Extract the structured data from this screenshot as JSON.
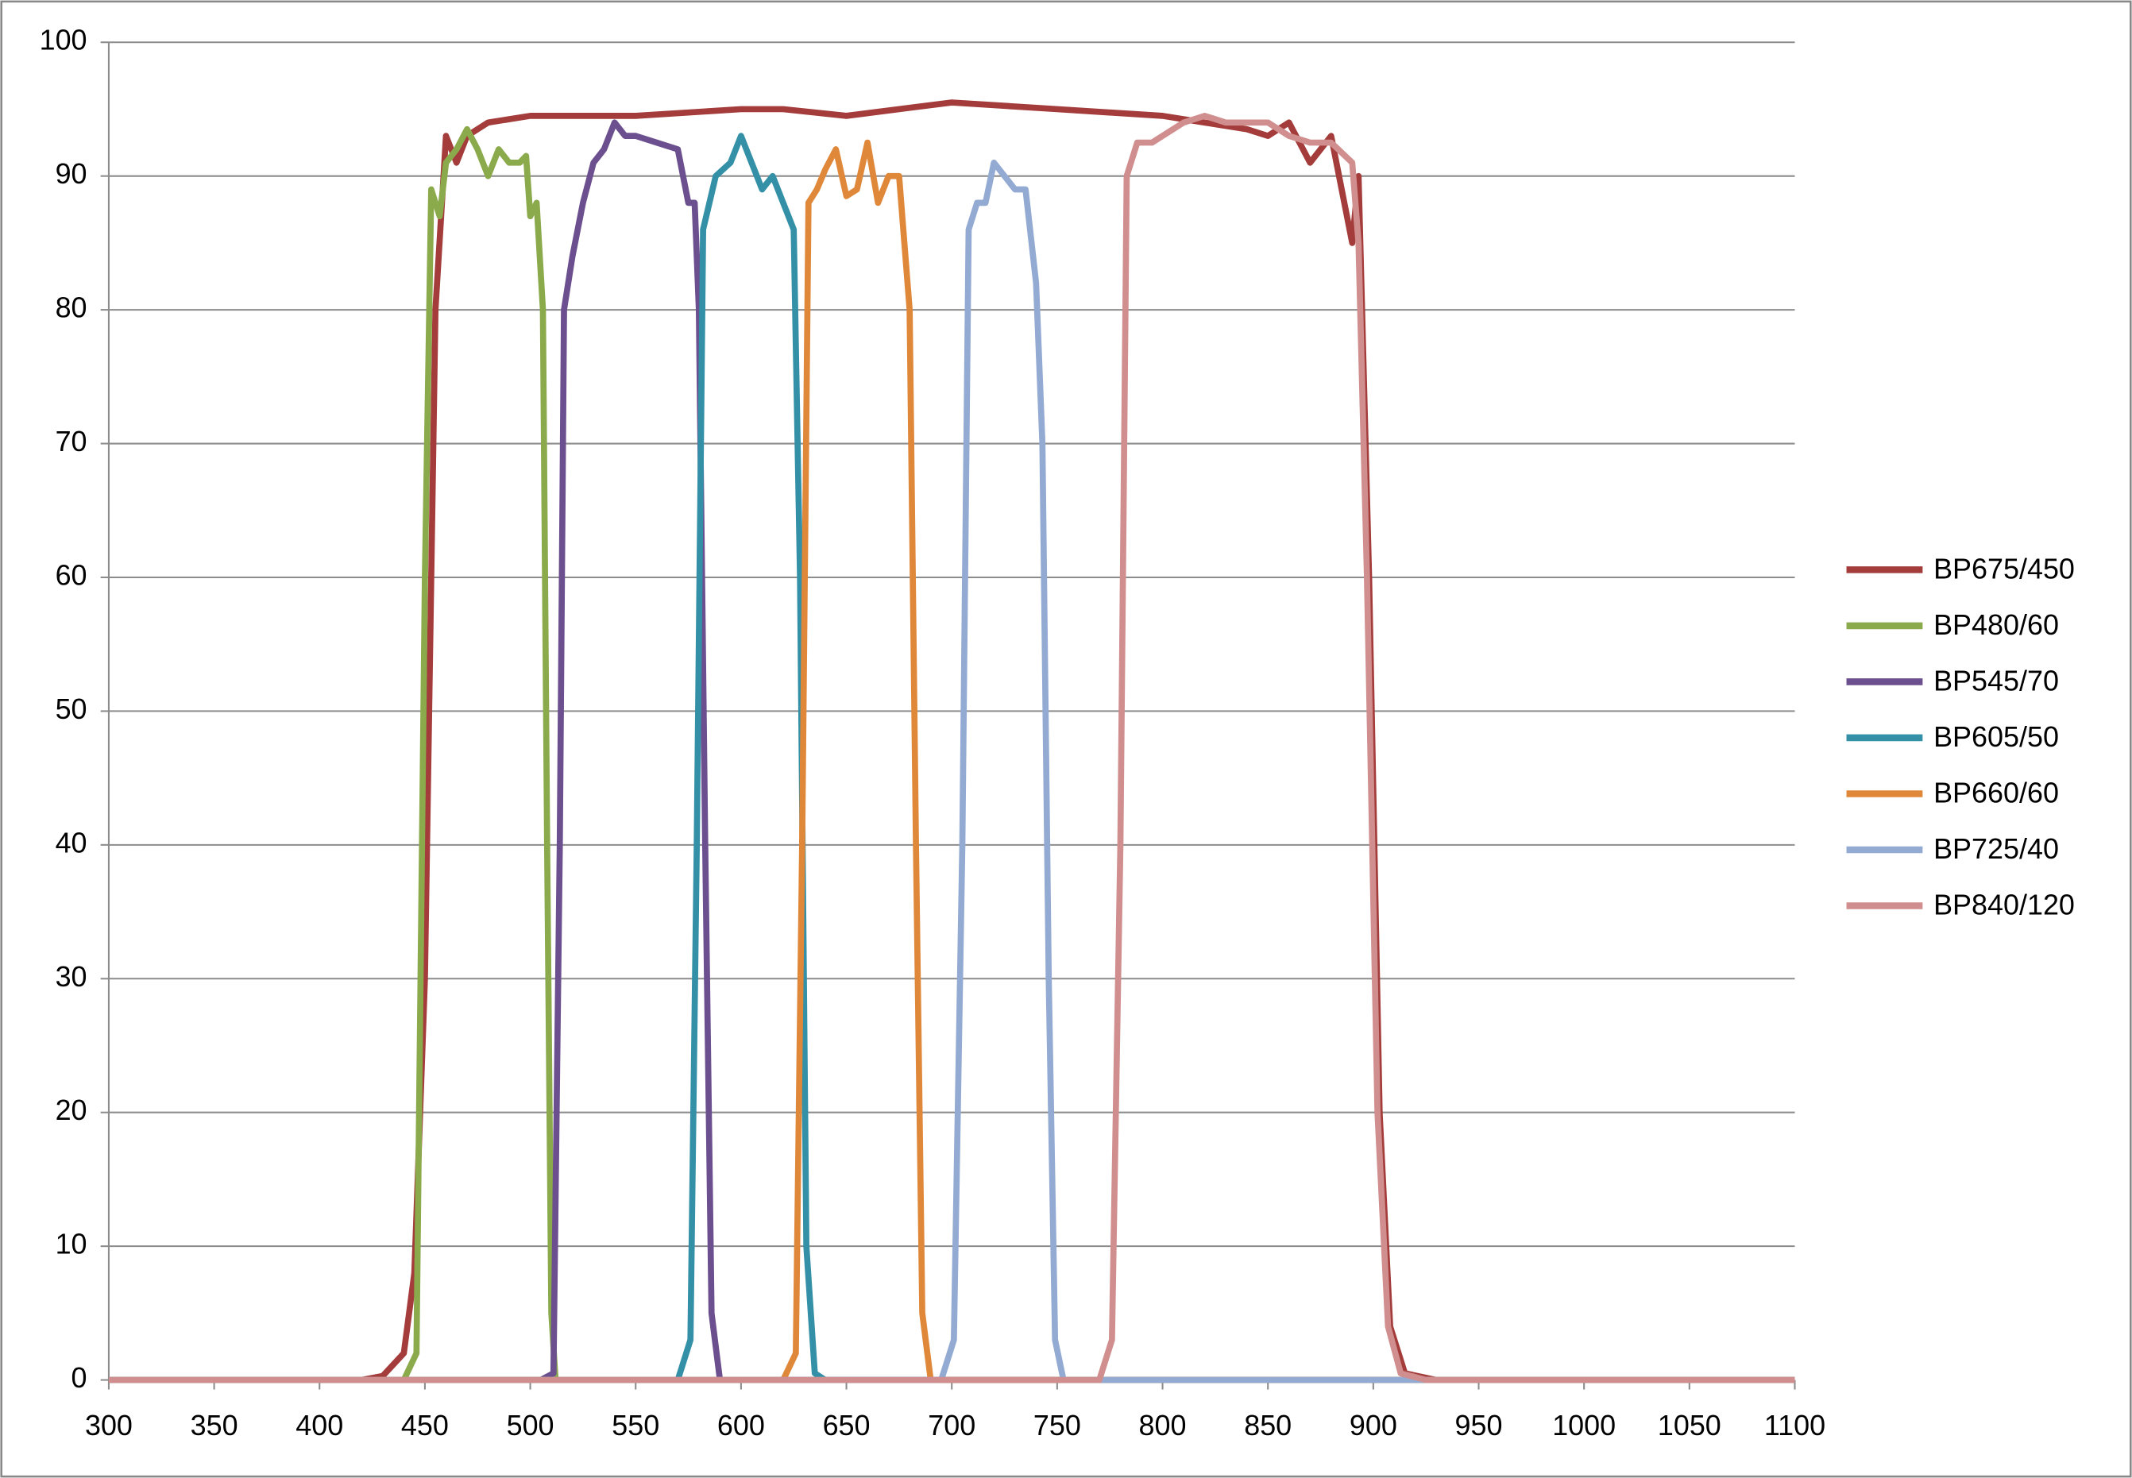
{
  "chart_data": {
    "type": "line",
    "xlim": [
      300,
      1100
    ],
    "xticks": [
      300,
      350,
      400,
      450,
      500,
      550,
      600,
      650,
      700,
      750,
      800,
      850,
      900,
      950,
      1000,
      1050,
      1100
    ],
    "ylim": [
      0,
      100
    ],
    "yticks": [
      0,
      10,
      20,
      30,
      40,
      50,
      60,
      70,
      80,
      90,
      100
    ],
    "grid": true,
    "legend": "right",
    "series": [
      {
        "name": "BP675/450",
        "color": "#a33c3a",
        "x": [
          300,
          420,
          430,
          440,
          445,
          450,
          455,
          460,
          465,
          470,
          480,
          500,
          550,
          600,
          620,
          650,
          700,
          750,
          800,
          820,
          840,
          850,
          860,
          870,
          880,
          885,
          890,
          893,
          898,
          903,
          908,
          915,
          930,
          1100
        ],
        "values": [
          0,
          0,
          0.3,
          2,
          8,
          30,
          80,
          93,
          91,
          93,
          94,
          94.5,
          94.5,
          95,
          95,
          94.5,
          95.5,
          95,
          94.5,
          94,
          93.5,
          93,
          94,
          91,
          93,
          89,
          85,
          90,
          60,
          20,
          4,
          0.5,
          0,
          0
        ]
      },
      {
        "name": "BP480/60",
        "color": "#8aaa4b",
        "x": [
          300,
          440,
          446,
          450,
          453,
          457,
          460,
          465,
          470,
          475,
          480,
          485,
          490,
          495,
          498,
          500,
          503,
          506,
          508,
          510,
          512,
          1100
        ],
        "values": [
          0,
          0,
          2,
          60,
          89,
          87,
          91,
          92,
          93.5,
          92,
          90,
          92,
          91,
          91,
          91.5,
          87,
          88,
          80,
          40,
          5,
          0,
          0
        ]
      },
      {
        "name": "BP545/70",
        "color": "#6b4f8e",
        "x": [
          300,
          505,
          511,
          514,
          516,
          520,
          525,
          530,
          535,
          540,
          545,
          550,
          560,
          570,
          575,
          578,
          580,
          583,
          586,
          590,
          1100
        ],
        "values": [
          0,
          0,
          0.5,
          40,
          80,
          84,
          88,
          91,
          92,
          94,
          93,
          93,
          92.5,
          92,
          88,
          88,
          80,
          40,
          5,
          0,
          0
        ]
      },
      {
        "name": "BP605/50",
        "color": "#3390a6",
        "x": [
          300,
          570,
          576,
          579,
          582,
          585,
          588,
          595,
          600,
          605,
          610,
          615,
          620,
          625,
          628,
          631,
          635,
          640,
          1100
        ],
        "values": [
          0,
          0,
          3,
          40,
          86,
          88,
          90,
          91,
          93,
          91,
          89,
          90,
          88,
          86,
          60,
          10,
          0.5,
          0,
          0
        ]
      },
      {
        "name": "BP660/60",
        "color": "#e0883a",
        "x": [
          300,
          620,
          626,
          629,
          632,
          636,
          640,
          645,
          650,
          655,
          660,
          665,
          670,
          675,
          680,
          683,
          686,
          690,
          1100
        ],
        "values": [
          0,
          0,
          2,
          40,
          88,
          89,
          90.5,
          92,
          88.5,
          89,
          92.5,
          88,
          90,
          90,
          80,
          40,
          5,
          0,
          0
        ]
      },
      {
        "name": "BP725/40",
        "color": "#93aad2",
        "x": [
          300,
          695,
          701,
          705,
          708,
          712,
          716,
          720,
          725,
          730,
          735,
          740,
          743,
          746,
          749,
          753,
          1100
        ],
        "values": [
          0,
          0,
          3,
          40,
          86,
          88,
          88,
          91,
          90,
          89,
          89,
          82,
          70,
          30,
          3,
          0,
          0
        ]
      },
      {
        "name": "BP840/120",
        "color": "#d08e8e",
        "x": [
          300,
          770,
          776,
          780,
          783,
          788,
          795,
          800,
          810,
          820,
          830,
          840,
          850,
          860,
          870,
          880,
          890,
          893,
          897,
          902,
          907,
          913,
          925,
          1100
        ],
        "values": [
          0,
          0,
          3,
          40,
          90,
          92.5,
          92.5,
          93,
          94,
          94.5,
          94,
          94,
          94,
          93,
          92.5,
          92.5,
          91,
          85,
          60,
          20,
          4,
          0.5,
          0,
          0
        ]
      }
    ]
  }
}
